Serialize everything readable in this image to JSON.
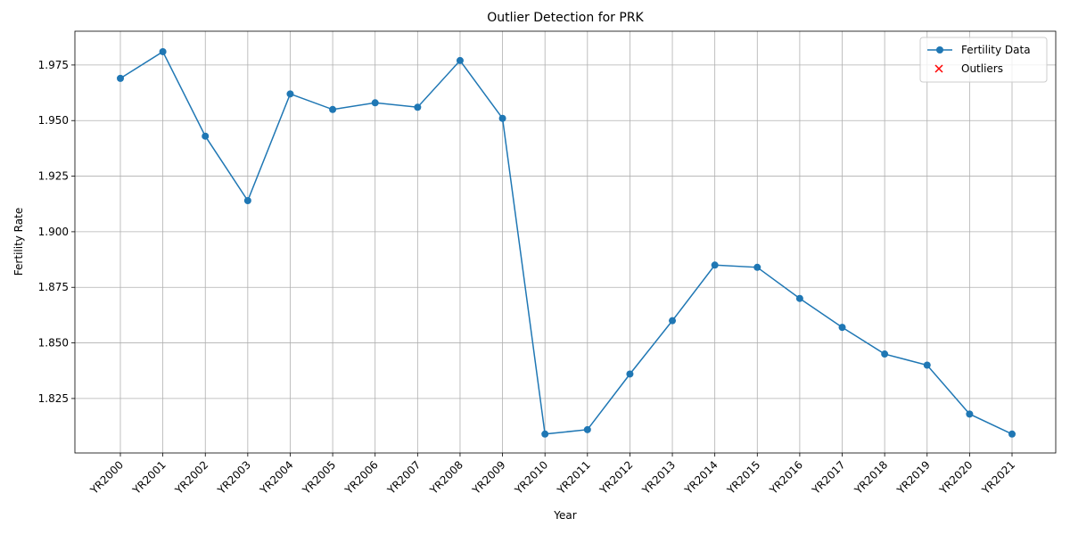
{
  "chart_data": {
    "type": "line",
    "title": "Outlier Detection for PRK",
    "x_label": "Year",
    "y_label": "Fertility Rate",
    "categories": [
      "YR2000",
      "YR2001",
      "YR2002",
      "YR2003",
      "YR2004",
      "YR2005",
      "YR2006",
      "YR2007",
      "YR2008",
      "YR2009",
      "YR2010",
      "YR2011",
      "YR2012",
      "YR2013",
      "YR2014",
      "YR2015",
      "YR2016",
      "YR2017",
      "YR2018",
      "YR2019",
      "YR2020",
      "YR2021"
    ],
    "series": [
      {
        "name": "Fertility Data",
        "color": "#1f77b4",
        "values": [
          1.969,
          1.981,
          1.943,
          1.914,
          1.962,
          1.955,
          1.958,
          1.956,
          1.977,
          1.951,
          1.809,
          1.811,
          1.836,
          1.86,
          1.885,
          1.884,
          1.87,
          1.857,
          1.845,
          1.84,
          1.818,
          1.809
        ]
      },
      {
        "name": "Outliers",
        "color": "#ff0000",
        "marker": "x",
        "values": [
          null,
          null,
          null,
          null,
          null,
          null,
          null,
          null,
          null,
          null,
          null,
          null,
          null,
          null,
          null,
          null,
          null,
          null,
          null,
          null,
          null,
          null
        ]
      }
    ],
    "ylim": [
      1.8005,
      1.9902
    ],
    "yticks": [
      1.825,
      {
        "value": 1.85,
        "label": "1.850"
      },
      1.875,
      {
        "value": 1.9,
        "label": "1.900"
      },
      1.925,
      {
        "value": 1.95,
        "label": "1.950"
      },
      1.975
    ],
    "grid": true,
    "legend": "upper right"
  }
}
